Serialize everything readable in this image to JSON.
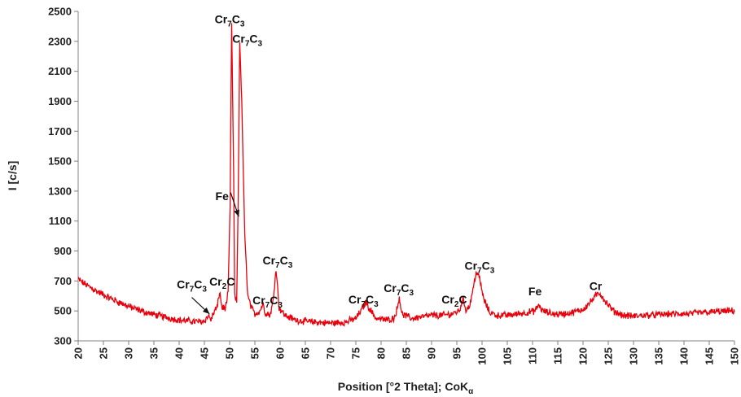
{
  "chart_data": {
    "type": "line",
    "xlabel_main": "Position [°2 Theta];  CoK",
    "xlabel_sub": "α",
    "ylabel": "I [c/s]",
    "xlim": [
      20,
      150
    ],
    "ylim": [
      300,
      2500
    ],
    "x_ticks": [
      20,
      25,
      30,
      35,
      40,
      45,
      50,
      55,
      60,
      65,
      70,
      75,
      80,
      85,
      90,
      95,
      100,
      105,
      110,
      115,
      120,
      125,
      130,
      135,
      140,
      145,
      150
    ],
    "y_ticks": [
      300,
      500,
      700,
      900,
      1100,
      1300,
      1500,
      1700,
      1900,
      2100,
      2300,
      2500
    ],
    "grid": false,
    "legend": "none",
    "line_color": "#e8000b",
    "series": [
      {
        "points": [
          [
            20,
            710
          ],
          [
            22,
            665
          ],
          [
            24,
            625
          ],
          [
            26,
            590
          ],
          [
            28,
            560
          ],
          [
            30,
            530
          ],
          [
            32,
            505
          ],
          [
            34,
            485
          ],
          [
            36,
            468
          ],
          [
            38,
            452
          ],
          [
            40,
            440
          ],
          [
            42,
            432
          ],
          [
            44,
            428
          ],
          [
            45,
            432
          ],
          [
            45.8,
            470
          ],
          [
            46.3,
            440
          ],
          [
            47,
            500
          ],
          [
            47.6,
            530
          ],
          [
            48,
            630
          ],
          [
            48.5,
            520
          ],
          [
            49.2,
            520
          ],
          [
            49.7,
            620
          ],
          [
            50.1,
            1200
          ],
          [
            50.4,
            2430
          ],
          [
            50.8,
            1400
          ],
          [
            51,
            600
          ],
          [
            51.4,
            560
          ],
          [
            51.7,
            1250
          ],
          [
            52,
            2300
          ],
          [
            52.4,
            1900
          ],
          [
            53,
            1000
          ],
          [
            53.6,
            600
          ],
          [
            54.3,
            520
          ],
          [
            55,
            480
          ],
          [
            56,
            500
          ],
          [
            56.6,
            550
          ],
          [
            57,
            490
          ],
          [
            58,
            470
          ],
          [
            58.6,
            560
          ],
          [
            59.2,
            790
          ],
          [
            59.8,
            520
          ],
          [
            61,
            470
          ],
          [
            63,
            440
          ],
          [
            65,
            430
          ],
          [
            67,
            425
          ],
          [
            69,
            420
          ],
          [
            71,
            420
          ],
          [
            73,
            425
          ],
          [
            75,
            450
          ],
          [
            76.2,
            510
          ],
          [
            77,
            560
          ],
          [
            77.8,
            510
          ],
          [
            79,
            450
          ],
          [
            81,
            440
          ],
          [
            82.5,
            450
          ],
          [
            83.2,
            510
          ],
          [
            83.6,
            600
          ],
          [
            84.1,
            480
          ],
          [
            86,
            450
          ],
          [
            88,
            460
          ],
          [
            90,
            470
          ],
          [
            92,
            470
          ],
          [
            94,
            480
          ],
          [
            95.5,
            500
          ],
          [
            96.2,
            580
          ],
          [
            96.8,
            510
          ],
          [
            97.5,
            530
          ],
          [
            98.2,
            640
          ],
          [
            98.8,
            760
          ],
          [
            99.5,
            720
          ],
          [
            100.3,
            580
          ],
          [
            101.5,
            490
          ],
          [
            103,
            470
          ],
          [
            105,
            470
          ],
          [
            107,
            480
          ],
          [
            109,
            490
          ],
          [
            110.5,
            500
          ],
          [
            111.2,
            540
          ],
          [
            112,
            500
          ],
          [
            114,
            480
          ],
          [
            116,
            480
          ],
          [
            118,
            490
          ],
          [
            120,
            510
          ],
          [
            121.5,
            560
          ],
          [
            122.5,
            600
          ],
          [
            123.3,
            620
          ],
          [
            124.5,
            560
          ],
          [
            126,
            500
          ],
          [
            128,
            470
          ],
          [
            130,
            465
          ],
          [
            132,
            470
          ],
          [
            135,
            475
          ],
          [
            138,
            480
          ],
          [
            141,
            480
          ],
          [
            144,
            490
          ],
          [
            147,
            495
          ],
          [
            150,
            500
          ]
        ]
      }
    ],
    "annotations": [
      {
        "main": "Cr",
        "sub": "7",
        "main2": "C",
        "sub2": "3",
        "x": 50.0,
        "y": 2420
      },
      {
        "main": "Cr",
        "sub": "7",
        "main2": "C",
        "sub2": "3",
        "x": 53.5,
        "y": 2290
      },
      {
        "main": "Fe",
        "sub": "",
        "main2": "",
        "sub2": "",
        "x": 48.5,
        "y": 1240
      },
      {
        "main": "Cr",
        "sub": "2",
        "main2": "C",
        "sub2": "",
        "x": 48.5,
        "y": 670
      },
      {
        "main": "Cr",
        "sub": "7",
        "main2": "C",
        "sub2": "3",
        "x": 42.5,
        "y": 650
      },
      {
        "main": "Cr",
        "sub": "7",
        "main2": "C",
        "sub2": "3",
        "x": 57.5,
        "y": 545
      },
      {
        "main": "Cr",
        "sub": "7",
        "main2": "C",
        "sub2": "3",
        "x": 59.5,
        "y": 810
      },
      {
        "main": "Cr",
        "sub": "7",
        "main2": "C",
        "sub2": "3",
        "x": 76.5,
        "y": 550
      },
      {
        "main": "Cr",
        "sub": "7",
        "main2": "C",
        "sub2": "3",
        "x": 83.5,
        "y": 625
      },
      {
        "main": "Cr",
        "sub": "2",
        "main2": "C",
        "sub2": "",
        "x": 94.5,
        "y": 550
      },
      {
        "main": "Cr",
        "sub": "7",
        "main2": "C",
        "sub2": "3",
        "x": 99.5,
        "y": 775
      },
      {
        "main": "Fe",
        "sub": "",
        "main2": "",
        "sub2": "",
        "x": 110.5,
        "y": 605
      },
      {
        "main": "Cr",
        "sub": "",
        "main2": "",
        "sub2": "",
        "x": 122.5,
        "y": 640
      }
    ],
    "arrows": [
      {
        "from": [
          50.2,
          1290
        ],
        "to": [
          51.8,
          1130
        ]
      },
      {
        "from": [
          42.5,
          590
        ],
        "to": [
          46.0,
          480
        ]
      }
    ]
  }
}
